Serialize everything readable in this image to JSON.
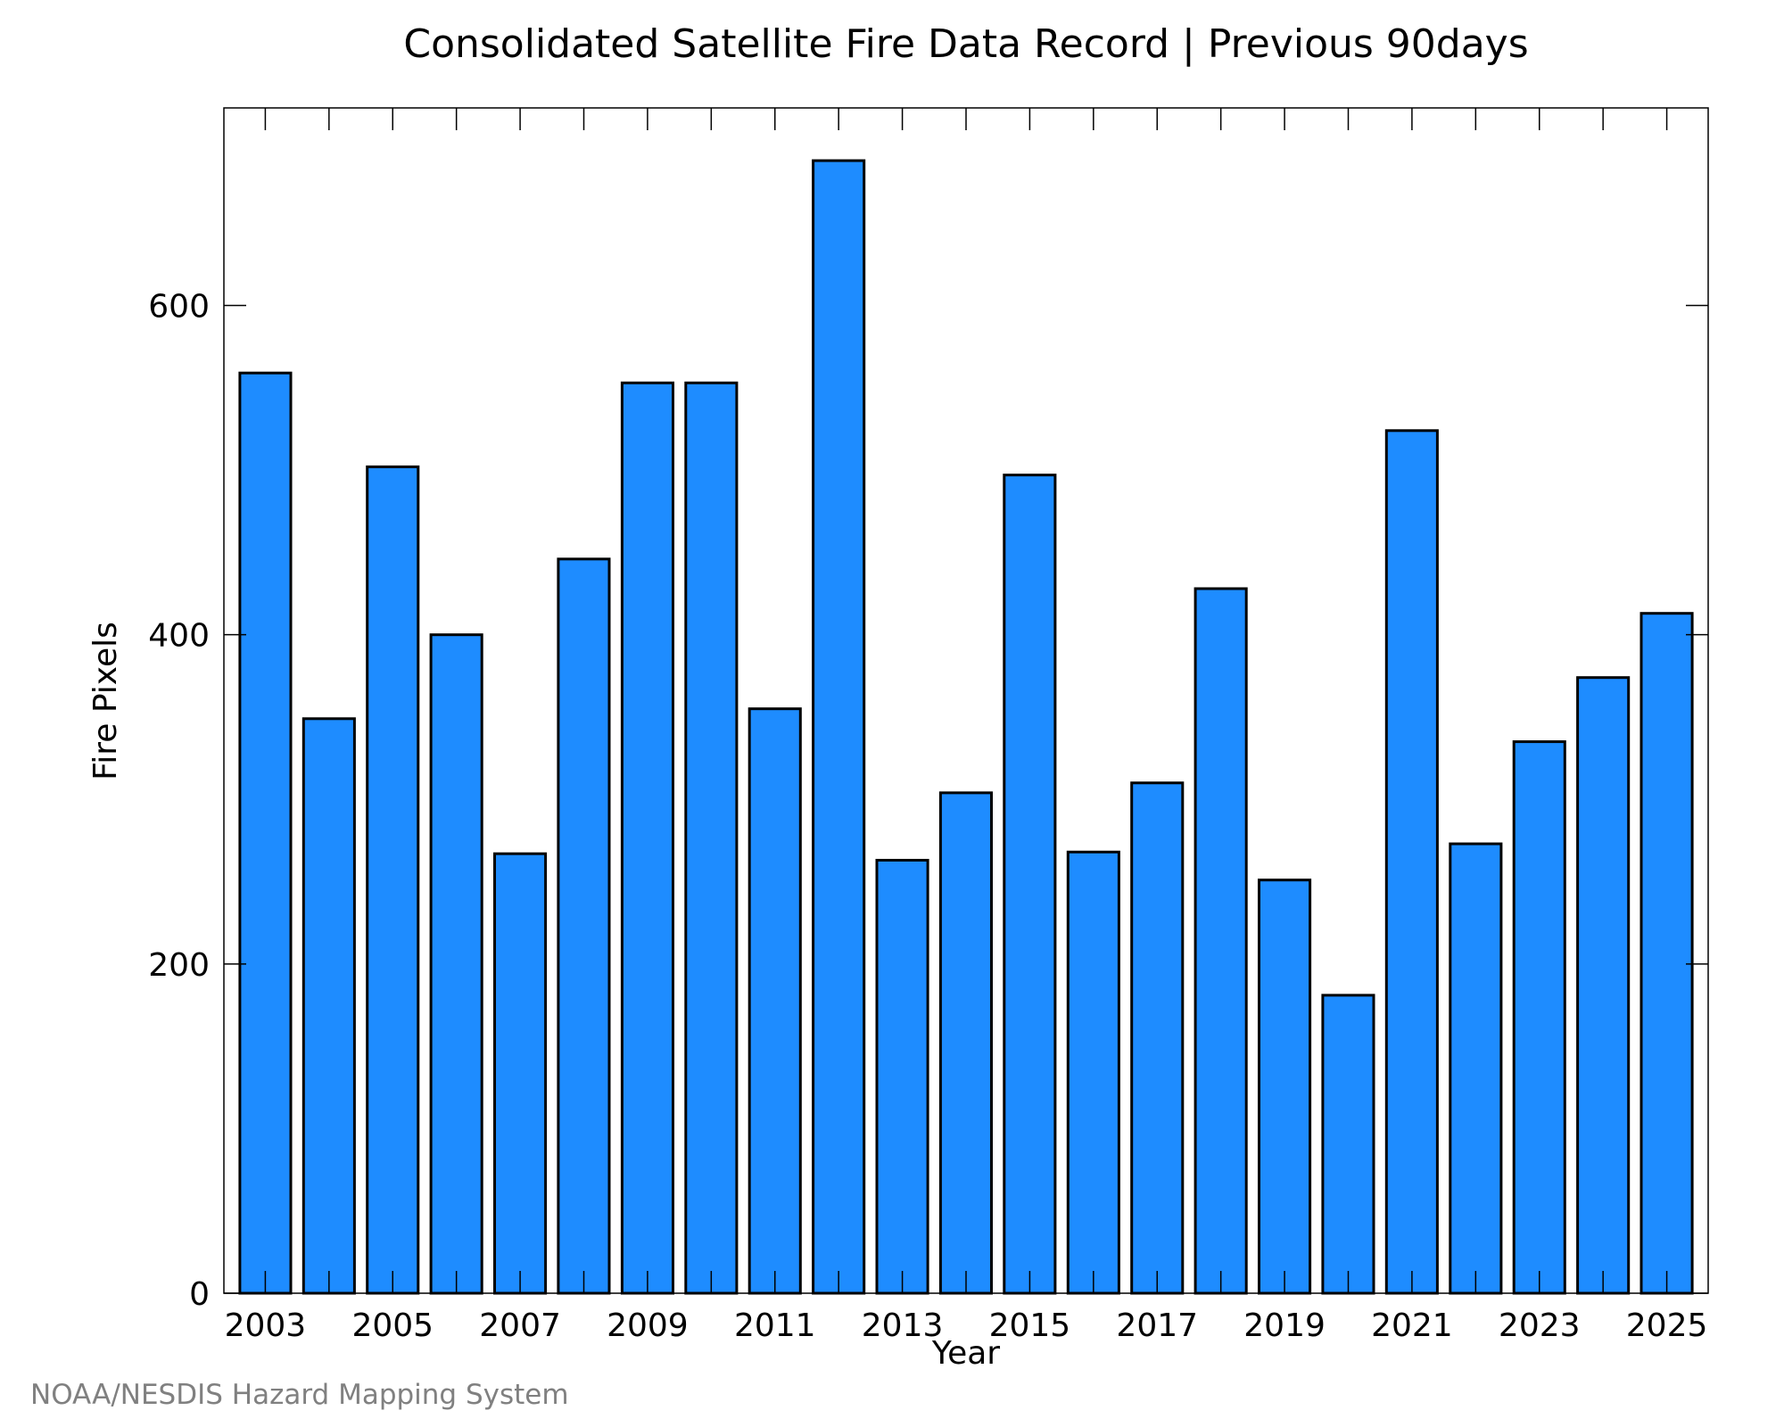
{
  "chart_data": {
    "type": "bar",
    "title": "Consolidated Satellite Fire Data Record | Previous 90days",
    "xlabel": "Year",
    "ylabel": "Fire Pixels",
    "categories": [
      "2003",
      "2004",
      "2005",
      "2006",
      "2007",
      "2008",
      "2009",
      "2010",
      "2011",
      "2012",
      "2013",
      "2014",
      "2015",
      "2016",
      "2017",
      "2018",
      "2019",
      "2020",
      "2021",
      "2022",
      "2023",
      "2024",
      "2025"
    ],
    "values": [
      559,
      349,
      502,
      400,
      267,
      446,
      553,
      553,
      355,
      688,
      263,
      304,
      497,
      268,
      310,
      428,
      251,
      181,
      524,
      273,
      335,
      374,
      413
    ],
    "x_tick_labels": [
      "2003",
      "2005",
      "2007",
      "2009",
      "2011",
      "2013",
      "2015",
      "2017",
      "2019",
      "2021",
      "2023",
      "2025"
    ],
    "y_ticks": [
      0,
      200,
      400,
      600
    ],
    "ylim": [
      0,
      720
    ],
    "grid": false,
    "bar_color": "#1e8cff",
    "bar_edge_color": "#000000"
  },
  "credit": "NOAA/NESDIS Hazard Mapping System"
}
